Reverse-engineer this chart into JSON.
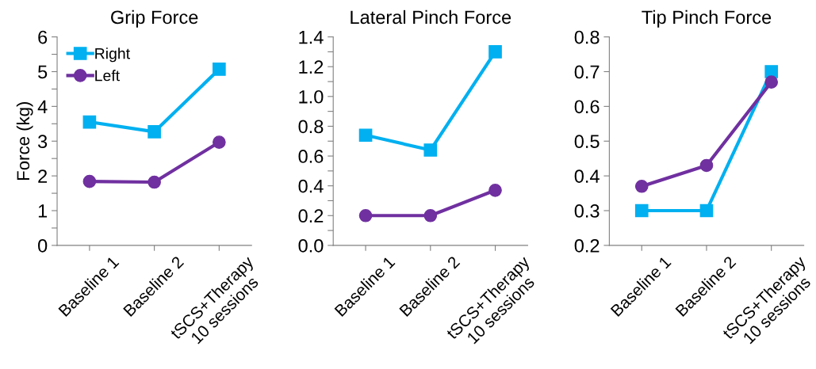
{
  "chart_data": [
    {
      "type": "line",
      "title": "Grip Force",
      "ylabel": "Force (kg)",
      "categories": [
        "Baseline 1",
        "Baseline 2",
        "tSCS+Therapy\n10 sessions"
      ],
      "legend": "top left",
      "grid": false,
      "series": [
        {
          "name": "Right",
          "color": "#00b0f0",
          "marker": "square",
          "values": [
            3.55,
            3.27,
            5.07
          ]
        },
        {
          "name": "Left",
          "color": "#7030a0",
          "marker": "circle",
          "values": [
            1.84,
            1.82,
            2.97
          ]
        }
      ],
      "ylim": [
        0,
        6
      ],
      "yticks": [
        0,
        {
          "value": 0.5,
          "label": null
        },
        1,
        {
          "value": 1.5,
          "label": null
        },
        2,
        {
          "value": 2.5,
          "label": null
        },
        3,
        {
          "value": 3.5,
          "label": null
        },
        4,
        {
          "value": 4.5,
          "label": null
        },
        5,
        {
          "value": 5.5,
          "label": null
        },
        6
      ]
    },
    {
      "type": "line",
      "title": "Lateral Pinch Force",
      "categories": [
        "Baseline 1",
        "Baseline 2",
        "tSCS+Therapy\n10 sessions"
      ],
      "grid": false,
      "series": [
        {
          "color": "#00b0f0",
          "marker": "square",
          "values": [
            0.74,
            0.64,
            1.3
          ]
        },
        {
          "color": "#7030a0",
          "marker": "circle",
          "values": [
            0.2,
            0.2,
            0.37
          ]
        }
      ],
      "ylim": [
        0,
        1.4
      ],
      "yticks": [
        {
          "value": 0,
          "label": "0.0"
        },
        {
          "value": 0.1,
          "label": null
        },
        0.2,
        {
          "value": 0.3,
          "label": null
        },
        0.4,
        {
          "value": 0.5,
          "label": null
        },
        0.6,
        {
          "value": 0.7,
          "label": null
        },
        0.8,
        {
          "value": 0.9,
          "label": null
        },
        {
          "value": 1.0,
          "label": "1.0"
        },
        {
          "value": 1.1,
          "label": null
        },
        1.2,
        {
          "value": 1.3,
          "label": null
        },
        1.4
      ]
    },
    {
      "type": "line",
      "title": "Tip Pinch Force",
      "categories": [
        "Baseline 1",
        "Baseline 2",
        "tSCS+Therapy\n10 sessions"
      ],
      "grid": false,
      "series": [
        {
          "color": "#00b0f0",
          "marker": "square",
          "values": [
            0.3,
            0.3,
            0.7
          ]
        },
        {
          "color": "#7030a0",
          "marker": "circle",
          "values": [
            0.37,
            0.43,
            0.67
          ]
        }
      ],
      "ylim": [
        0.2,
        0.8
      ],
      "yticks": [
        0.2,
        0.3,
        0.4,
        0.5,
        0.6,
        0.7,
        0.8
      ]
    }
  ]
}
